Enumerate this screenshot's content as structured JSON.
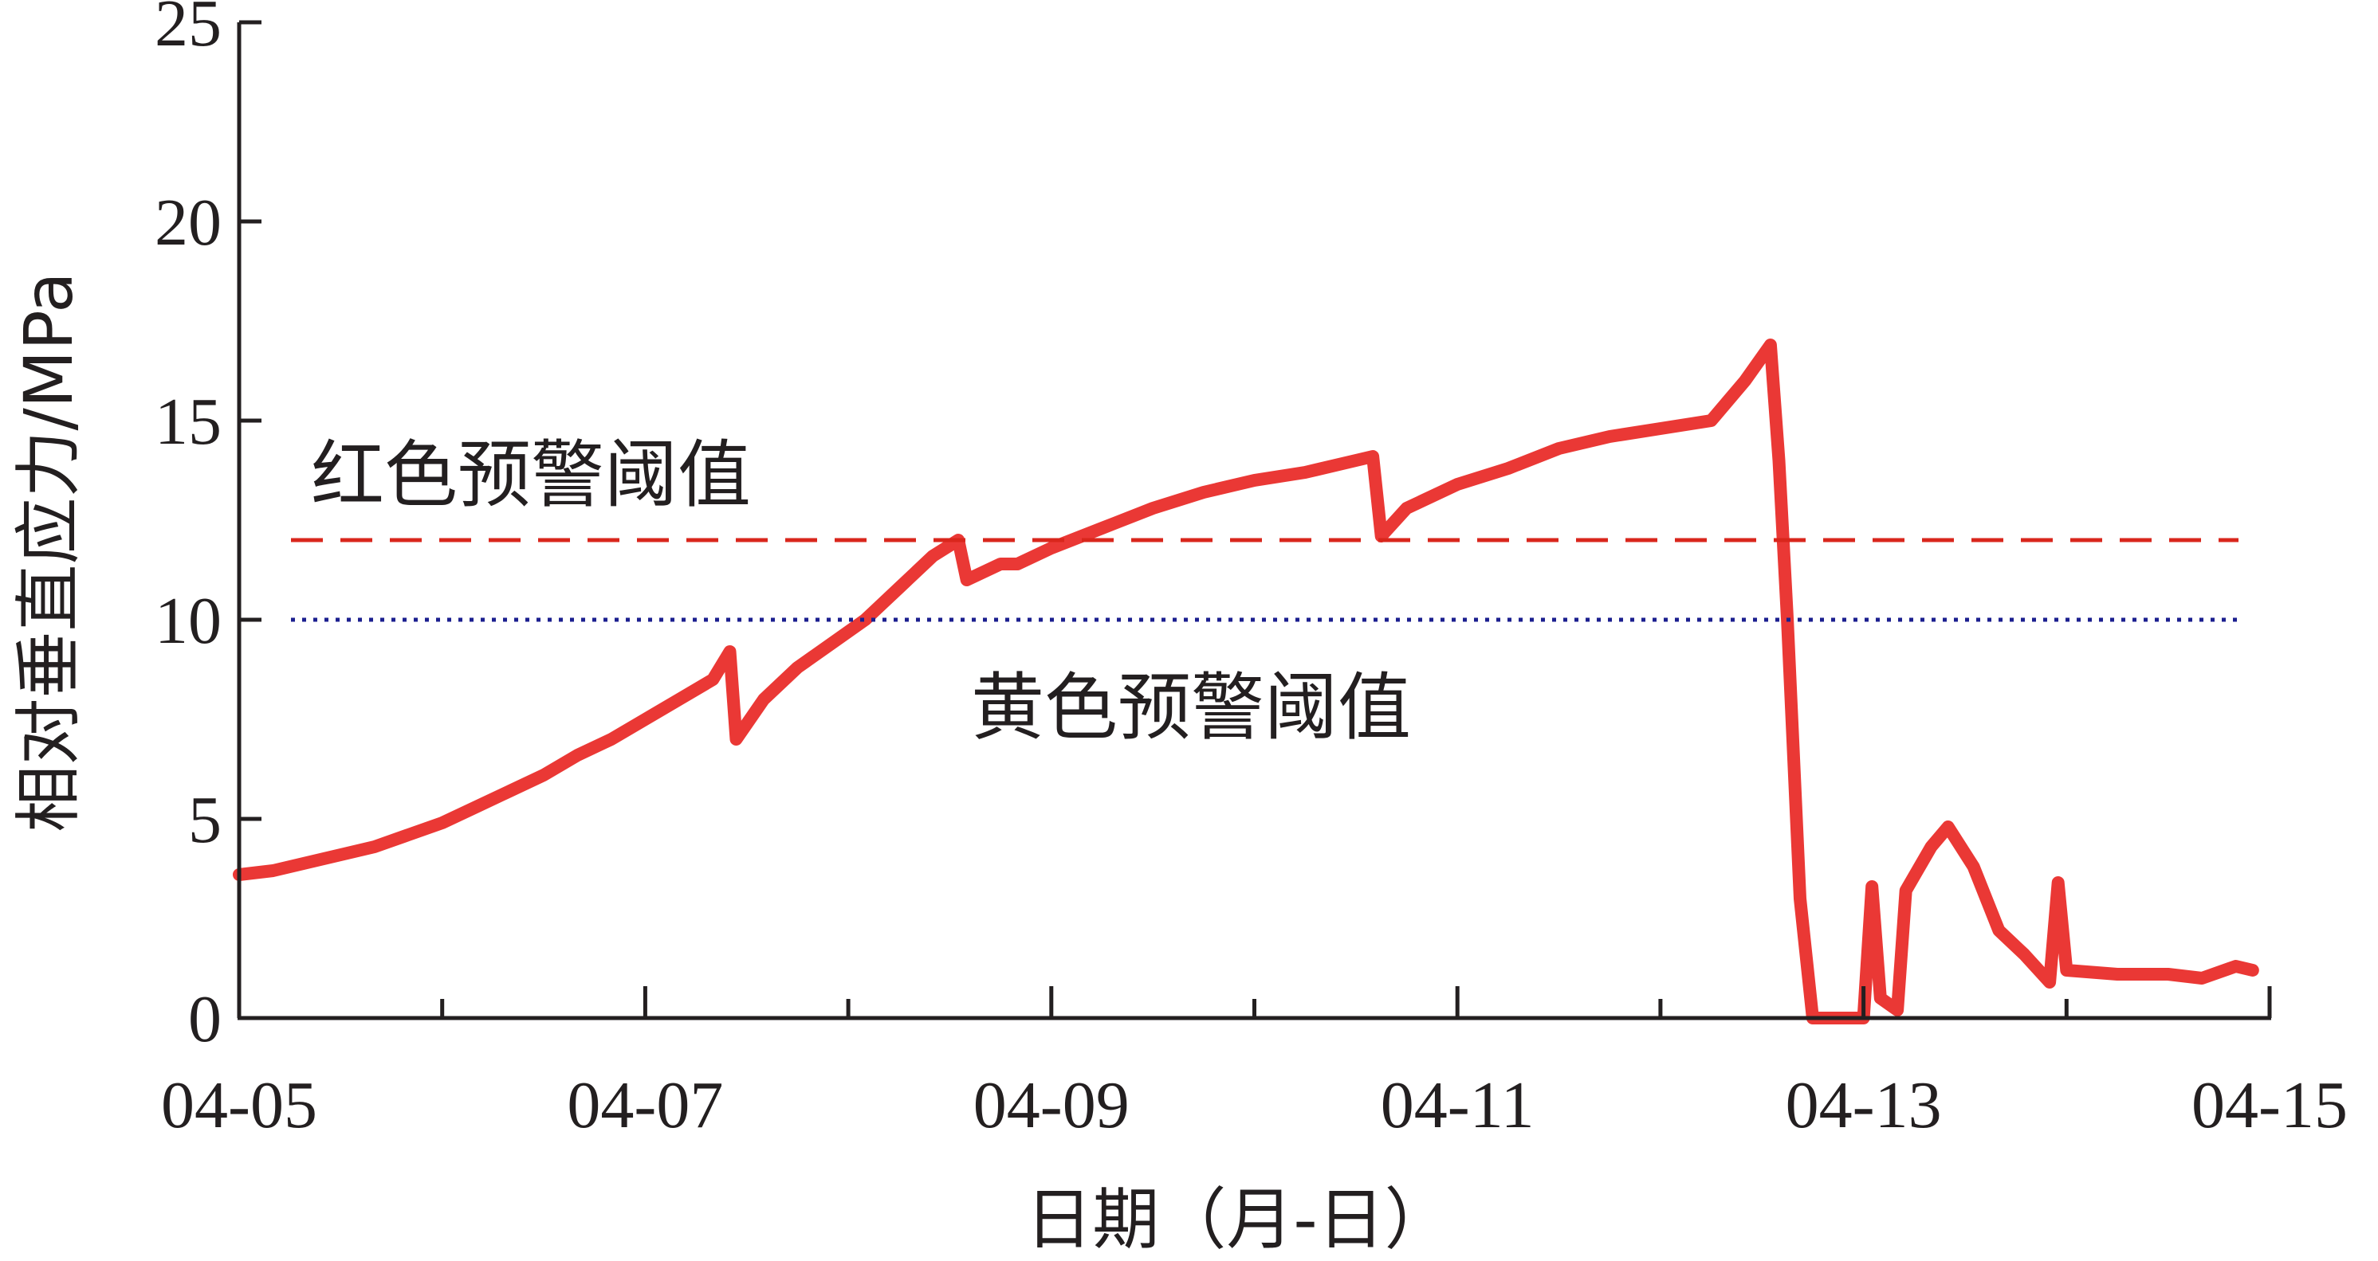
{
  "chart_data": {
    "type": "line",
    "xlabel": "日期（月-日）",
    "ylabel": "相对垂直应力/MPa",
    "x_unit": "days",
    "xlim": [
      "04-05",
      "04-15"
    ],
    "ylim": [
      0,
      25
    ],
    "x_ticks": [
      "04-05",
      "04-07",
      "04-09",
      "04-11",
      "04-13",
      "04-15"
    ],
    "y_ticks": [
      "0",
      "5",
      "10",
      "15",
      "20",
      "25"
    ],
    "grid": false,
    "colors": {
      "series": "#e8221f",
      "red_threshold": "#d9261c",
      "yellow_threshold": "#1b1f8f",
      "axis": "#231f20"
    },
    "thresholds": [
      {
        "label": "红色预警阈值",
        "value": 12,
        "style": "dashed"
      },
      {
        "label": "黄色预警阈值",
        "value": 10,
        "style": "dotted"
      }
    ],
    "series": [
      {
        "points": [
          [
            "04-05 00:00",
            3.6
          ],
          [
            "04-05 04:00",
            3.7
          ],
          [
            "04-05 08:00",
            3.9
          ],
          [
            "04-05 12:00",
            4.1
          ],
          [
            "04-05 16:00",
            4.3
          ],
          [
            "04-05 20:00",
            4.6
          ],
          [
            "04-06 00:00",
            4.9
          ],
          [
            "04-06 04:00",
            5.3
          ],
          [
            "04-06 08:00",
            5.7
          ],
          [
            "04-06 12:00",
            6.1
          ],
          [
            "04-06 16:00",
            6.6
          ],
          [
            "04-06 20:00",
            7.0
          ],
          [
            "04-07 00:00",
            7.5
          ],
          [
            "04-07 04:00",
            8.0
          ],
          [
            "04-07 08:00",
            8.5
          ],
          [
            "04-07 10:00",
            9.2
          ],
          [
            "04-07 10:45",
            7.0
          ],
          [
            "04-07 14:00",
            8.0
          ],
          [
            "04-07 18:00",
            8.8
          ],
          [
            "04-07 22:00",
            9.4
          ],
          [
            "04-08 02:00",
            10.0
          ],
          [
            "04-08 06:00",
            10.8
          ],
          [
            "04-08 10:00",
            11.6
          ],
          [
            "04-08 13:00",
            12.0
          ],
          [
            "04-08 14:00",
            11.0
          ],
          [
            "04-08 18:00",
            11.4
          ],
          [
            "04-08 20:00",
            11.4
          ],
          [
            "04-09 00:00",
            11.8
          ],
          [
            "04-09 06:00",
            12.3
          ],
          [
            "04-09 12:00",
            12.8
          ],
          [
            "04-09 18:00",
            13.2
          ],
          [
            "04-10 00:00",
            13.5
          ],
          [
            "04-10 06:00",
            13.7
          ],
          [
            "04-10 12:00",
            14.0
          ],
          [
            "04-10 14:00",
            14.1
          ],
          [
            "04-10 15:00",
            12.1
          ],
          [
            "04-10 18:00",
            12.8
          ],
          [
            "04-11 00:00",
            13.4
          ],
          [
            "04-11 06:00",
            13.8
          ],
          [
            "04-11 12:00",
            14.3
          ],
          [
            "04-11 18:00",
            14.6
          ],
          [
            "04-12 00:00",
            14.8
          ],
          [
            "04-12 06:00",
            15.0
          ],
          [
            "04-12 10:00",
            16.0
          ],
          [
            "04-12 13:00",
            16.9
          ],
          [
            "04-12 14:00",
            14.0
          ],
          [
            "04-12 15:00",
            10.0
          ],
          [
            "04-12 16:30",
            3.0
          ],
          [
            "04-12 18:00",
            0.0
          ],
          [
            "04-13 00:00",
            0.0
          ],
          [
            "04-13 01:00",
            3.3
          ],
          [
            "04-13 02:00",
            0.5
          ],
          [
            "04-13 04:00",
            0.2
          ],
          [
            "04-13 05:00",
            3.2
          ],
          [
            "04-13 08:00",
            4.3
          ],
          [
            "04-13 10:00",
            4.8
          ],
          [
            "04-13 13:00",
            3.8
          ],
          [
            "04-13 16:00",
            2.2
          ],
          [
            "04-13 19:00",
            1.6
          ],
          [
            "04-13 22:00",
            0.9
          ],
          [
            "04-13 23:00",
            3.4
          ],
          [
            "04-14 00:00",
            1.2
          ],
          [
            "04-14 06:00",
            1.1
          ],
          [
            "04-14 12:00",
            1.1
          ],
          [
            "04-14 16:00",
            1.0
          ],
          [
            "04-14 20:00",
            1.3
          ],
          [
            "04-14 22:00",
            1.2
          ]
        ]
      }
    ]
  }
}
